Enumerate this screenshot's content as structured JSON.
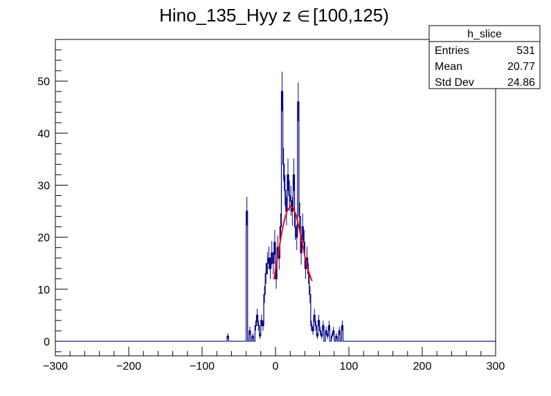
{
  "chart_data": {
    "type": "histogram",
    "title_prefix": "Hino_135_Hyy z",
    "title_symbol": "∈",
    "title_range": "[100,125)",
    "xlabel": "",
    "ylabel": "",
    "xlim": [
      -300,
      300
    ],
    "ylim": [
      -2.8,
      58
    ],
    "x_ticks": [
      -300,
      -200,
      -100,
      0,
      100,
      200,
      300
    ],
    "x_tick_labels": [
      "−300",
      "−200",
      "−100",
      "0",
      "100",
      "200",
      "300"
    ],
    "y_ticks": [
      0,
      10,
      20,
      30,
      40,
      50
    ],
    "y_tick_labels": [
      "0",
      "10",
      "20",
      "30",
      "40",
      "50"
    ],
    "grid": false,
    "series": [
      {
        "kind": "histogram",
        "color": "#000080",
        "bin_width": 2,
        "x": [
          -300,
          -66,
          -64,
          -62,
          -40,
          -38,
          -36,
          -34,
          -32,
          -30,
          -28,
          -26,
          -24,
          -22,
          -20,
          -18,
          -16,
          -14,
          -12,
          -10,
          -8,
          -6,
          -4,
          -2,
          0,
          2,
          4,
          6,
          8,
          10,
          12,
          14,
          16,
          18,
          20,
          22,
          24,
          26,
          28,
          30,
          32,
          34,
          36,
          38,
          40,
          42,
          44,
          46,
          48,
          50,
          52,
          54,
          56,
          58,
          60,
          62,
          64,
          66,
          68,
          70,
          72,
          74,
          76,
          78,
          80,
          82,
          84,
          86,
          88,
          90,
          92,
          94
        ],
        "y": [
          0,
          1,
          0,
          0,
          25,
          0,
          2,
          0,
          1,
          0,
          3,
          5,
          3,
          1,
          4,
          3,
          9,
          13,
          15,
          16,
          14,
          17,
          15,
          19,
          12,
          18,
          16,
          22,
          48,
          34,
          29,
          25,
          32,
          28,
          27,
          25,
          32,
          22,
          20,
          46,
          24,
          17,
          22,
          19,
          14,
          16,
          13,
          9,
          3,
          2,
          5,
          3,
          1,
          4,
          2,
          1,
          3,
          0,
          2,
          1,
          3,
          0,
          1,
          2,
          0,
          1,
          0,
          2,
          0,
          3,
          0,
          0
        ],
        "errors_top_indices": [
          4,
          30,
          40
        ]
      },
      {
        "kind": "line",
        "color": "#ff0000",
        "x": [
          -2,
          0,
          4,
          8,
          12,
          16,
          20,
          24,
          28,
          32,
          36,
          40,
          44,
          48,
          50
        ],
        "y": [
          11.9,
          13.8,
          17.1,
          20.5,
          23.3,
          25.1,
          25.9,
          25.7,
          24.3,
          21.9,
          19.2,
          16.4,
          13.9,
          12.2,
          11.6
        ]
      }
    ],
    "stats_box": {
      "title": "h_slice",
      "rows": [
        {
          "label": "Entries",
          "value": "531"
        },
        {
          "label": "Mean",
          "value": "20.77"
        },
        {
          "label": "Std Dev",
          "value": "24.86"
        }
      ]
    }
  }
}
